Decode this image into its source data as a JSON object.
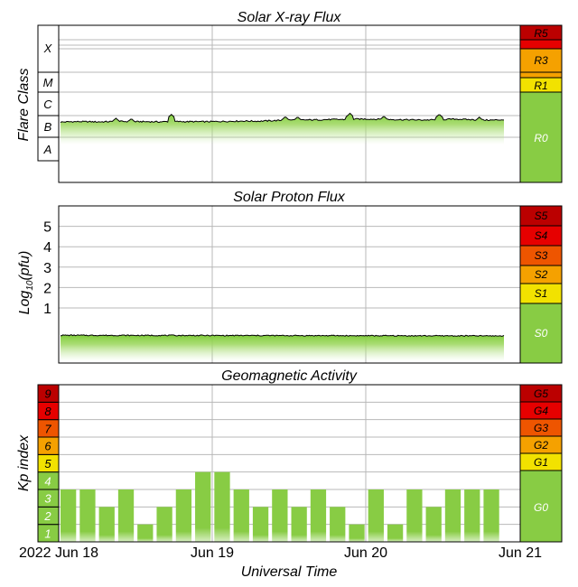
{
  "colors": {
    "green": "#88cc44",
    "yellow": "#f2e200",
    "orange": "#f5a100",
    "red_orange": "#ee5500",
    "red": "#e60000",
    "dark_red": "#bb0000",
    "grid": "#b8b8b8",
    "frame": "#000000"
  },
  "x_axis": {
    "title": "Universal Time",
    "tick_labels": [
      "2022 Jun 18",
      "Jun 19",
      "Jun 20",
      "Jun 21"
    ]
  },
  "chart_data": [
    {
      "type": "line",
      "title": "Solar X-ray Flux",
      "ylabel": "Flare Class",
      "x_range": [
        "2022-06-18",
        "2022-06-21"
      ],
      "class_labels": [
        "X",
        "M",
        "C",
        "B",
        "A"
      ],
      "scale_labels": [
        "R5",
        "R3",
        "R1",
        "R0"
      ],
      "series": [
        {
          "x_hours": [
            0,
            2,
            4,
            6,
            8,
            10,
            12,
            14,
            16,
            18,
            20,
            22,
            24,
            26,
            28,
            30,
            32,
            34,
            36,
            38,
            40,
            42,
            44,
            46,
            48,
            50,
            52,
            54,
            56,
            58,
            60,
            62,
            64,
            66,
            68,
            70,
            72
          ],
          "level": [
            1.7,
            1.72,
            1.72,
            1.71,
            1.72,
            1.73,
            1.72,
            1.72,
            1.71,
            1.73,
            1.72,
            1.72,
            1.72,
            1.73,
            1.74,
            1.75,
            1.74,
            1.76,
            1.78,
            1.8,
            1.8,
            1.81,
            1.82,
            1.82,
            1.84,
            1.84,
            1.83,
            1.82,
            1.81,
            1.8,
            1.8,
            1.82,
            1.84,
            1.82,
            1.8,
            1.79,
            1.81
          ]
        }
      ],
      "spikes": [
        {
          "x_hours": 9.0,
          "level": 1.88
        },
        {
          "x_hours": 11.5,
          "level": 1.86
        },
        {
          "x_hours": 18.0,
          "level": 2.05
        },
        {
          "x_hours": 36.5,
          "level": 1.95
        },
        {
          "x_hours": 38.5,
          "level": 1.94
        },
        {
          "x_hours": 47.0,
          "level": 2.1
        },
        {
          "x_hours": 52.5,
          "level": 1.97
        },
        {
          "x_hours": 61.5,
          "level": 2.06
        },
        {
          "x_hours": 68.0,
          "level": 1.93
        }
      ]
    },
    {
      "type": "line",
      "title": "Solar Proton Flux",
      "ylabel": "Log10(pfu)",
      "ylabel_parts": [
        "Log",
        "10",
        "(pfu)"
      ],
      "yticks": [
        "1",
        "2",
        "3",
        "4",
        "5"
      ],
      "ylim": [
        -1.7,
        6.0
      ],
      "scale_labels": [
        "S5",
        "S4",
        "S3",
        "S2",
        "S1",
        "S0"
      ],
      "series": [
        {
          "x_hours": [
            0,
            72
          ],
          "log_pfu": [
            -0.34,
            -0.37
          ]
        }
      ]
    },
    {
      "type": "bar",
      "title": "Geomagnetic Activity",
      "ylabel": "Kp index",
      "yticks": [
        "1",
        "2",
        "3",
        "4",
        "5",
        "6",
        "7",
        "8",
        "9"
      ],
      "ylim": [
        0,
        9
      ],
      "scale_labels": [
        "G5",
        "G4",
        "G3",
        "G2",
        "G1",
        "G0"
      ],
      "bar_interval_hours": 3,
      "values": [
        3,
        3,
        2,
        3,
        1,
        2,
        3,
        4,
        4,
        3,
        2,
        3,
        2,
        3,
        2,
        1,
        3,
        1,
        3,
        2,
        3,
        3,
        3
      ]
    }
  ]
}
